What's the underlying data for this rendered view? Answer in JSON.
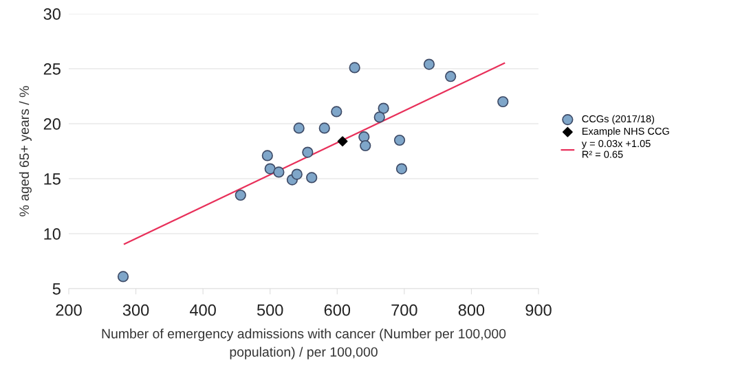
{
  "chart_data": {
    "type": "scatter",
    "xlabel": "Number of emergency admissions with cancer (Number per 100,000\npopulation) / per 100,000",
    "ylabel": "% aged 65+ years / %",
    "xlim": [
      200,
      900
    ],
    "xticks": [
      200,
      300,
      400,
      500,
      600,
      700,
      800,
      900
    ],
    "ylim": [
      5,
      30
    ],
    "yticks": [
      5,
      10,
      15,
      20,
      25,
      30
    ],
    "grid": "y",
    "legend": "right",
    "series": [
      {
        "name": "CCGs (2017/18)",
        "marker": "circle",
        "color": "#7fa6c9",
        "x": [
          281,
          456,
          496,
          500,
          513,
          533,
          540,
          562,
          543,
          556,
          581,
          626,
          599,
          640,
          642,
          669,
          663,
          693,
          696,
          737,
          769,
          847
        ],
        "values": [
          6.1,
          13.5,
          17.1,
          15.9,
          15.6,
          14.9,
          15.4,
          15.1,
          19.6,
          17.4,
          19.6,
          25.1,
          21.1,
          18.8,
          18.0,
          21.4,
          20.6,
          18.5,
          15.9,
          25.4,
          24.3,
          22.0
        ]
      },
      {
        "name": "Example NHS CCG",
        "marker": "diamond",
        "color": "#000000",
        "x": [
          608
        ],
        "values": [
          18.4
        ]
      },
      {
        "name": "y = 0.03x +1.05\nR² = 0.65",
        "type": "line",
        "marker": "none",
        "color": "#e8305a",
        "x": [
          283,
          849
        ],
        "values": [
          9.06,
          25.5
        ]
      }
    ]
  }
}
